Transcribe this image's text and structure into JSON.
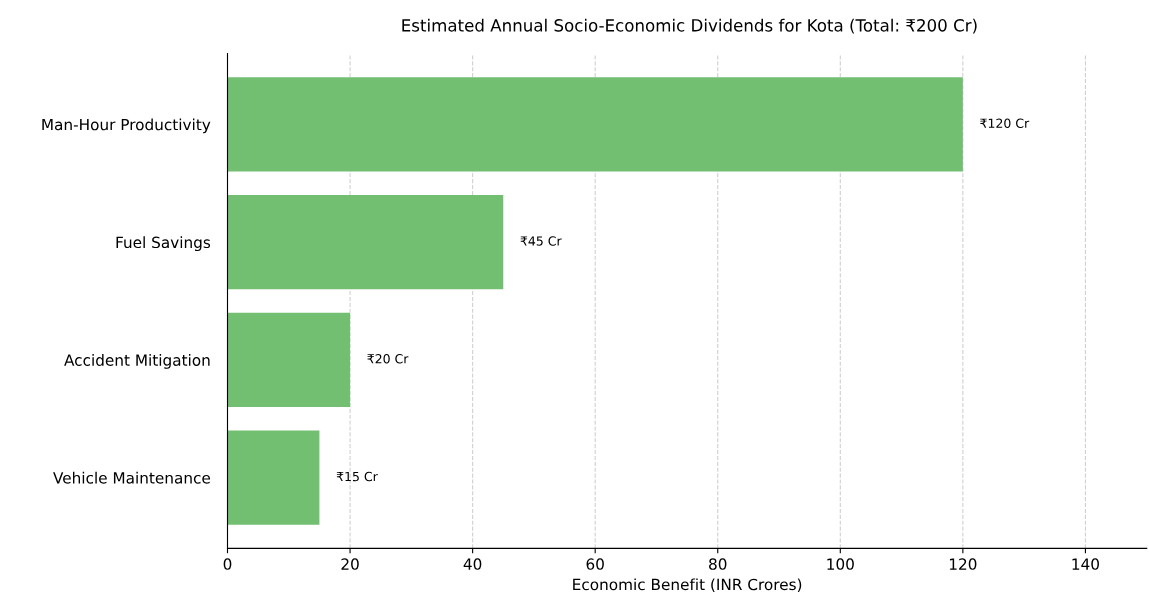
{
  "chart_data": {
    "type": "bar",
    "orientation": "horizontal",
    "title": "Estimated Annual Socio-Economic Dividends for Kota (Total: ₹200 Cr)",
    "xlabel": "Economic Benefit (INR Crores)",
    "categories": [
      "Man-Hour Productivity",
      "Fuel Savings",
      "Accident Mitigation",
      "Vehicle Maintenance"
    ],
    "values": [
      120,
      45,
      20,
      15
    ],
    "value_labels": [
      "₹120 Cr",
      "₹45 Cr",
      "₹20 Cr",
      "₹15 Cr"
    ],
    "color": "#72bf72",
    "xlim": [
      0,
      150
    ],
    "xticks": [
      0,
      20,
      40,
      60,
      80,
      100,
      120,
      140
    ],
    "grid": "x",
    "legend": false
  }
}
